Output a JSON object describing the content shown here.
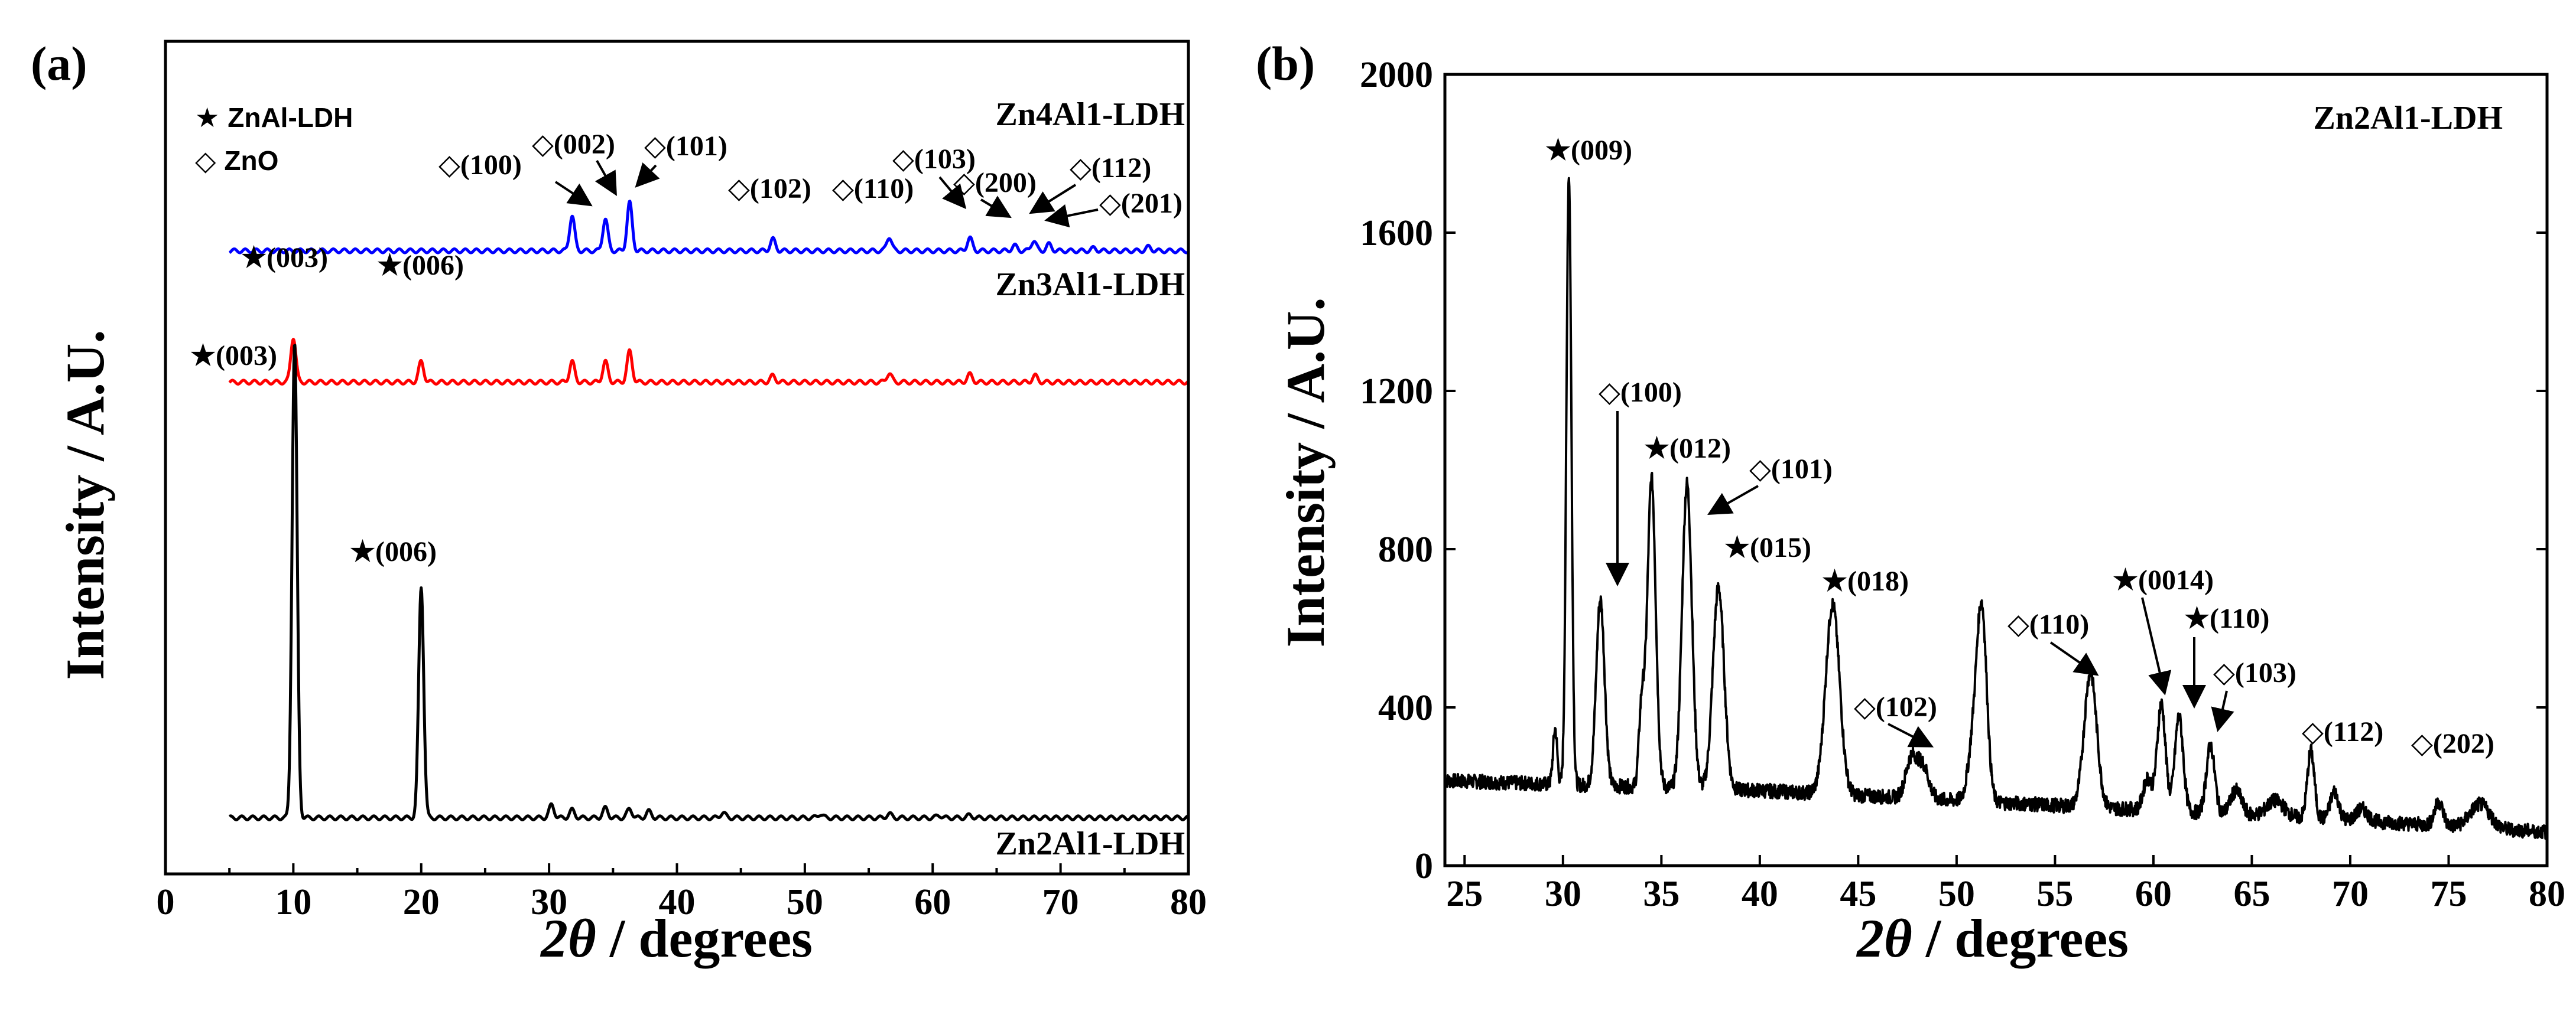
{
  "chart_data": [
    {
      "panel": "(a)",
      "type": "line",
      "xlabel": "2θ / degrees",
      "xlabel_italic": "2θ",
      "xlabel_rest": " / degrees",
      "ylabel": "Intensity / A.U.",
      "xlim": [
        0,
        80
      ],
      "xticks": [
        "0",
        "10",
        "20",
        "30",
        "40",
        "50",
        "60",
        "70",
        "80"
      ],
      "legend": [
        {
          "symbol": "★",
          "label": "ZnAl-LDH"
        },
        {
          "symbol": "◇",
          "label": "ZnO"
        }
      ],
      "series": [
        {
          "name": "Zn4Al1-LDH",
          "color": "#0000ff",
          "baseline": 0.885,
          "peaks": [
            [
              31.8,
              0.055
            ],
            [
              34.4,
              0.05
            ],
            [
              36.3,
              0.075
            ],
            [
              47.5,
              0.018
            ],
            [
              56.6,
              0.022
            ],
            [
              62.9,
              0.02
            ],
            [
              66.4,
              0.008
            ],
            [
              67.9,
              0.016
            ],
            [
              69.1,
              0.01
            ],
            [
              72.6,
              0.004
            ],
            [
              76.9,
              0.006
            ]
          ]
        },
        {
          "name": "Zn3Al1-LDH",
          "color": "#ff0000",
          "baseline": 0.68,
          "peaks": [
            [
              10.0,
              0.07
            ],
            [
              20.0,
              0.032
            ],
            [
              31.8,
              0.032
            ],
            [
              34.4,
              0.032
            ],
            [
              36.3,
              0.048
            ],
            [
              47.5,
              0.01
            ],
            [
              56.6,
              0.014
            ],
            [
              62.9,
              0.012
            ],
            [
              68.0,
              0.01
            ]
          ]
        },
        {
          "name": "Zn2Al1-LDH",
          "color": "#000000",
          "baseline": 0.0,
          "peaks": [
            [
              10.1,
              0.74
            ],
            [
              20.0,
              0.36
            ],
            [
              30.2,
              0.02
            ],
            [
              31.8,
              0.012
            ],
            [
              34.4,
              0.015
            ],
            [
              36.3,
              0.014
            ],
            [
              37.8,
              0.01
            ],
            [
              43.6,
              0.008
            ],
            [
              51.2,
              0.006
            ],
            [
              56.6,
              0.006
            ],
            [
              60.5,
              0.004
            ],
            [
              62.9,
              0.004
            ]
          ]
        }
      ],
      "annotations": [
        {
          "text": "◇(100)"
        },
        {
          "text": "◇(002)"
        },
        {
          "text": "◇(101)"
        },
        {
          "text": "◇(102)"
        },
        {
          "text": "◇(110)"
        },
        {
          "text": "◇(103)"
        },
        {
          "text": "◇(200)"
        },
        {
          "text": "◇(112)"
        },
        {
          "text": "◇(201)"
        },
        {
          "text": "★(003)"
        },
        {
          "text": "★(006)"
        },
        {
          "text": "★(003)"
        },
        {
          "text": "★(006)"
        }
      ]
    },
    {
      "panel": "(b)",
      "type": "line",
      "title": "Zn2Al1-LDH",
      "xlabel": "2θ / degrees",
      "xlabel_italic": "2θ",
      "xlabel_rest": " / degrees",
      "ylabel": "Intensity / A.U.",
      "xlim": [
        24,
        80
      ],
      "ylim": [
        0,
        2000
      ],
      "xticks": [
        "25",
        "30",
        "35",
        "40",
        "45",
        "50",
        "55",
        "60",
        "65",
        "70",
        "75",
        "80"
      ],
      "yticks": [
        "0",
        "400",
        "800",
        "1200",
        "1600",
        "2000"
      ],
      "background": [
        [
          24,
          215
        ],
        [
          30,
          205
        ],
        [
          40,
          190
        ],
        [
          50,
          165
        ],
        [
          60,
          140
        ],
        [
          70,
          115
        ],
        [
          80,
          85
        ]
      ],
      "peaks": [
        [
          29.6,
          140,
          0.15
        ],
        [
          30.3,
          1540,
          0.18
        ],
        [
          31.9,
          470,
          0.3
        ],
        [
          34.0,
          200,
          0.2
        ],
        [
          34.5,
          780,
          0.3
        ],
        [
          36.3,
          770,
          0.35
        ],
        [
          37.9,
          510,
          0.4
        ],
        [
          43.7,
          480,
          0.5
        ],
        [
          47.7,
          100,
          0.4
        ],
        [
          48.3,
          80,
          0.4
        ],
        [
          50.9,
          160,
          0.4
        ],
        [
          51.3,
          440,
          0.35
        ],
        [
          56.8,
          340,
          0.45
        ],
        [
          59.7,
          80,
          0.3
        ],
        [
          60.4,
          270,
          0.3
        ],
        [
          61.3,
          240,
          0.3
        ],
        [
          62.9,
          170,
          0.3
        ],
        [
          64.2,
          60,
          0.4
        ],
        [
          66.2,
          40,
          0.6
        ],
        [
          68.0,
          170,
          0.25
        ],
        [
          69.2,
          70,
          0.3
        ],
        [
          70.6,
          30,
          0.4
        ],
        [
          74.5,
          60,
          0.3
        ],
        [
          76.6,
          60,
          0.7
        ]
      ],
      "annotations": [
        {
          "text": "★(009)"
        },
        {
          "text": "◇(100)"
        },
        {
          "text": "★(012)"
        },
        {
          "text": "◇(101)"
        },
        {
          "text": "★(015)"
        },
        {
          "text": "★(018)"
        },
        {
          "text": "◇(102)"
        },
        {
          "text": "◇(110)"
        },
        {
          "text": "★(0014)"
        },
        {
          "text": "★(110)"
        },
        {
          "text": "◇(103)"
        },
        {
          "text": "◇(112)"
        },
        {
          "text": "◇(202)"
        }
      ]
    }
  ]
}
